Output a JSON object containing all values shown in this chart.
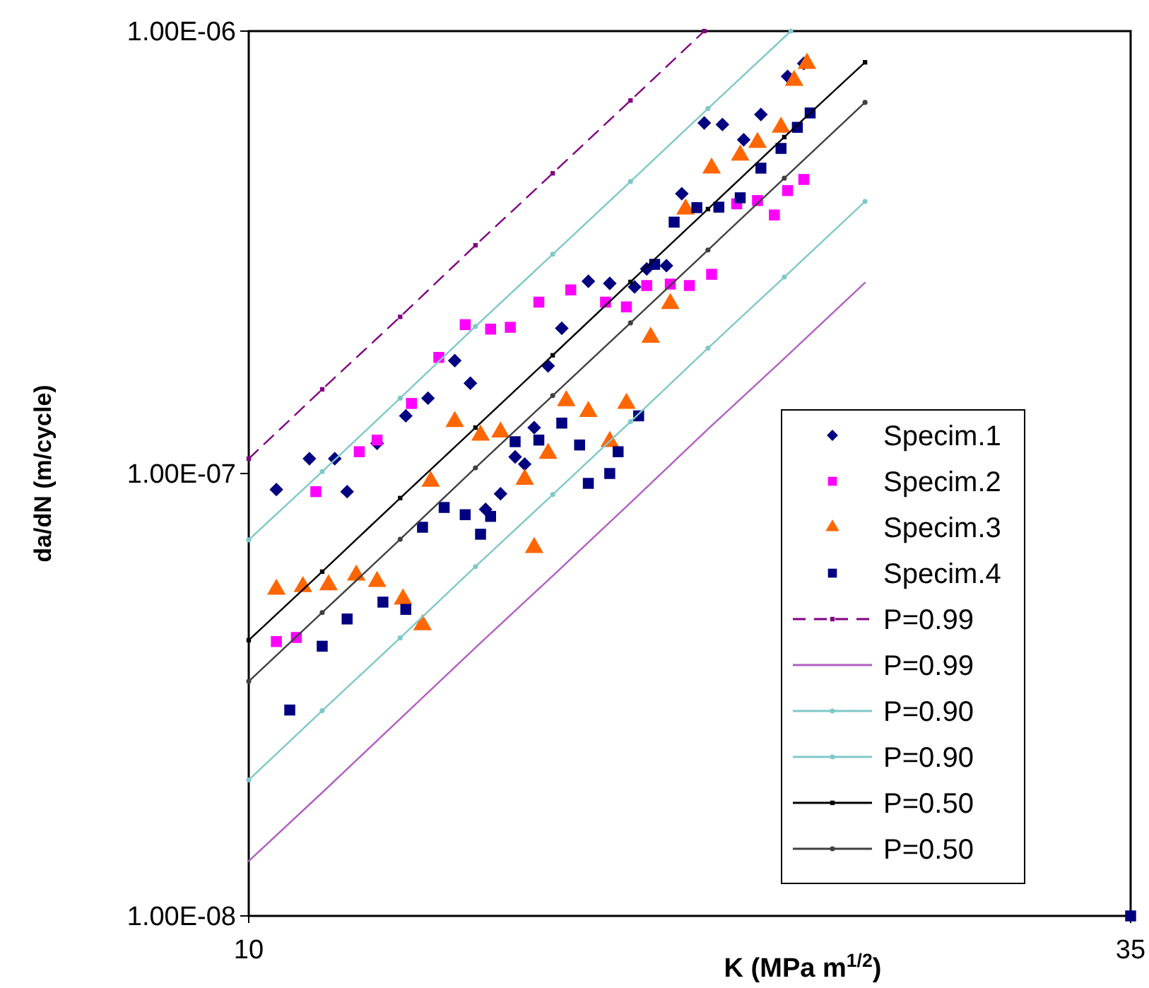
{
  "chart_data": {
    "type": "scatter",
    "xlabel": "K  (MPa m$^{1/2}$)",
    "ylabel": "da/dN  (m/cycle)",
    "log": "xy",
    "xlim": [
      10,
      35
    ],
    "xticks": [
      10,
      35
    ],
    "ylim": [
      1e-08,
      1e-06
    ],
    "yticks": [
      {
        "value": 1e-08,
        "label": "1.00E-08"
      },
      {
        "value": 1e-07,
        "label": "1.00E-07"
      },
      {
        "value": 1e-06,
        "label": "1.00E-06"
      }
    ],
    "grid": false,
    "legend": "right",
    "series": [
      {
        "name": "Specim.1",
        "marker": "diamond",
        "color": "#000080",
        "x": [
          10.4,
          10.9,
          11.3,
          11.5,
          12.0,
          12.5,
          12.9,
          13.4,
          13.7,
          14.0,
          14.3,
          14.6,
          14.8,
          15.0,
          15.3,
          15.6,
          16.2,
          16.7,
          17.3,
          17.6,
          18.1,
          18.5,
          19.1,
          19.6,
          20.2,
          20.7,
          21.5,
          22.0
        ],
        "values": [
          9.2e-08,
          1.08e-07,
          1.08e-07,
          9.1e-08,
          1.17e-07,
          1.35e-07,
          1.48e-07,
          1.8e-07,
          1.6e-07,
          8.3e-08,
          9e-08,
          1.09e-07,
          1.05e-07,
          1.27e-07,
          1.75e-07,
          2.13e-07,
          2.72e-07,
          2.69e-07,
          2.64e-07,
          2.9e-07,
          2.95e-07,
          4.29e-07,
          6.2e-07,
          6.15e-07,
          5.68e-07,
          6.48e-07,
          7.9e-07,
          8.45e-07
        ]
      },
      {
        "name": "Specim.2",
        "marker": "square",
        "color": "#ff00ff",
        "x": [
          10.4,
          10.7,
          11.0,
          11.7,
          12.0,
          12.6,
          13.1,
          13.6,
          14.1,
          14.5,
          15.1,
          15.8,
          16.6,
          17.1,
          17.6,
          18.2,
          18.7,
          19.3,
          20.0,
          20.6,
          21.1,
          21.5,
          22.0
        ],
        "values": [
          4.17e-08,
          4.26e-08,
          9.1e-08,
          1.12e-07,
          1.19e-07,
          1.44e-07,
          1.83e-07,
          2.17e-07,
          2.12e-07,
          2.14e-07,
          2.44e-07,
          2.6e-07,
          2.44e-07,
          2.38e-07,
          2.66e-07,
          2.68e-07,
          2.66e-07,
          2.82e-07,
          4.07e-07,
          4.14e-07,
          3.84e-07,
          4.36e-07,
          4.62e-07
        ]
      },
      {
        "name": "Specim.3",
        "marker": "triangle",
        "color": "#ff6600",
        "x": [
          10.4,
          10.8,
          11.2,
          11.65,
          12.0,
          12.45,
          12.8,
          12.95,
          13.4,
          13.9,
          14.3,
          14.8,
          15.0,
          15.3,
          15.7,
          16.2,
          16.7,
          17.1,
          17.7,
          18.2,
          18.6,
          19.3,
          20.1,
          20.6,
          21.3,
          21.7,
          22.1
        ],
        "values": [
          5.47e-08,
          5.55e-08,
          5.6e-08,
          5.89e-08,
          5.7e-08,
          5.2e-08,
          4.55e-08,
          9.6e-08,
          1.31e-07,
          1.22e-07,
          1.24e-07,
          9.7e-08,
          6.8e-08,
          1.11e-07,
          1.46e-07,
          1.38e-07,
          1.18e-07,
          1.44e-07,
          2.03e-07,
          2.42e-07,
          3.96e-07,
          4.9e-07,
          5.24e-07,
          5.6e-07,
          6.06e-07,
          7.73e-07,
          8.45e-07
        ]
      },
      {
        "name": "Specim.4",
        "marker": "square",
        "color": "#000080",
        "x": [
          10.6,
          11.1,
          11.5,
          12.1,
          12.5,
          12.8,
          13.2,
          13.6,
          13.9,
          14.1,
          14.6,
          15.1,
          15.6,
          16.0,
          16.2,
          16.7,
          16.9,
          17.4,
          17.8,
          18.3,
          18.9,
          19.5,
          20.1,
          20.7,
          21.3,
          21.8,
          22.2,
          35
        ],
        "values": [
          2.92e-08,
          4.07e-08,
          4.69e-08,
          5.12e-08,
          4.93e-08,
          7.56e-08,
          8.38e-08,
          8.07e-08,
          7.29e-08,
          8e-08,
          1.18e-07,
          1.19e-07,
          1.3e-07,
          1.16e-07,
          9.5e-08,
          1e-07,
          1.12e-07,
          1.35e-07,
          2.97e-07,
          3.7e-07,
          3.99e-07,
          4e-07,
          4.2e-07,
          4.9e-07,
          5.43e-07,
          6.06e-07,
          6.53e-07,
          1e-08
        ]
      },
      {
        "name": "P=0.99",
        "type": "line",
        "line_style": "dashed",
        "marker": "square",
        "color": "#800080",
        "x": [
          10,
          11.1,
          12.4,
          13.8,
          15.4,
          17.2,
          19.1
        ],
        "values": [
          1.08e-07,
          1.55e-07,
          2.26e-07,
          3.28e-07,
          4.77e-07,
          6.97e-07,
          1e-06
        ]
      },
      {
        "name": "P=0.99",
        "type": "line",
        "line_style": "solid",
        "marker": "none",
        "color": "#b060c0",
        "x": [
          10,
          11.1,
          12.4,
          13.8,
          15.4,
          17.2,
          19.2,
          21.4,
          24.0
        ],
        "values": [
          1.33e-08,
          1.9e-08,
          2.79e-08,
          4.04e-08,
          5.87e-08,
          8.59e-08,
          1.26e-07,
          1.82e-07,
          2.7e-07
        ]
      },
      {
        "name": "P=0.90",
        "type": "line",
        "line_style": "solid",
        "marker": "circle",
        "color": "#80c8c8",
        "x": [
          10,
          11.1,
          12.4,
          13.8,
          15.4,
          17.2,
          19.2,
          21.6
        ],
        "values": [
          7.08e-08,
          1.01e-07,
          1.48e-07,
          2.15e-07,
          3.13e-07,
          4.57e-07,
          6.68e-07,
          1e-06
        ]
      },
      {
        "name": "P=0.90",
        "type": "line",
        "line_style": "solid",
        "marker": "circle",
        "color": "#80c8c8",
        "x": [
          10,
          11.1,
          12.4,
          13.8,
          15.4,
          17.2,
          19.2,
          21.4,
          24.0
        ],
        "values": [
          2.03e-08,
          2.91e-08,
          4.25e-08,
          6.16e-08,
          8.96e-08,
          1.31e-07,
          1.92e-07,
          2.78e-07,
          4.12e-07
        ]
      },
      {
        "name": "P=0.50",
        "type": "line",
        "line_style": "solid",
        "marker": "square",
        "color": "#000000",
        "x": [
          10,
          11.1,
          12.4,
          13.8,
          15.4,
          17.2,
          19.2,
          21.4,
          24.0
        ],
        "values": [
          4.2e-08,
          6e-08,
          8.8e-08,
          1.27e-07,
          1.85e-07,
          2.71e-07,
          3.96e-07,
          5.76e-07,
          8.5e-07
        ]
      },
      {
        "name": "P=0.50",
        "type": "line",
        "line_style": "solid",
        "marker": "circle",
        "color": "#404040",
        "x": [
          10,
          11.1,
          12.4,
          13.8,
          15.4,
          17.2,
          19.2,
          21.4,
          24.0
        ],
        "values": [
          3.39e-08,
          4.85e-08,
          7.1e-08,
          1.03e-07,
          1.5e-07,
          2.19e-07,
          3.2e-07,
          4.65e-07,
          6.9e-07
        ]
      }
    ]
  }
}
